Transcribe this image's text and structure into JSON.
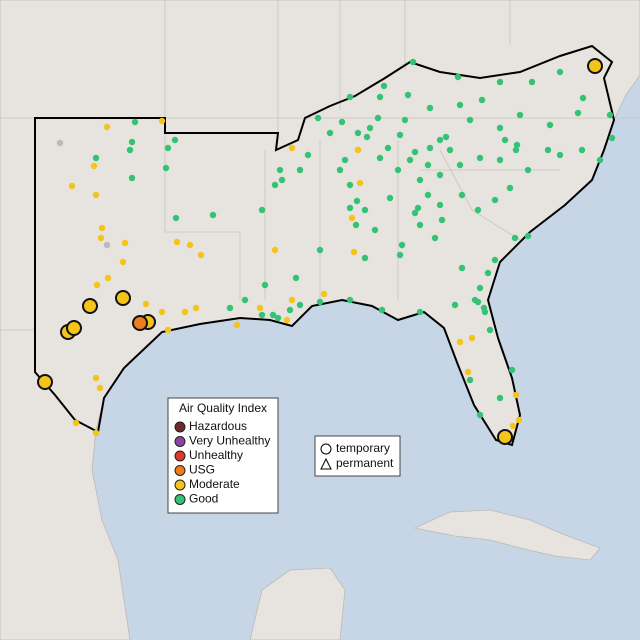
{
  "legend": {
    "title": "Air Quality Index",
    "items": [
      {
        "label": "Hazardous",
        "color": "#6e2b2b"
      },
      {
        "label": "Very Unhealthy",
        "color": "#8e44a0"
      },
      {
        "label": "Unhealthy",
        "color": "#e0392e"
      },
      {
        "label": "USG",
        "color": "#ee7d1f"
      },
      {
        "label": "Moderate",
        "color": "#f4c41a"
      },
      {
        "label": "Good",
        "color": "#33c374"
      }
    ]
  },
  "shape_legend": {
    "items": [
      "temporary",
      "permanent"
    ]
  }
}
